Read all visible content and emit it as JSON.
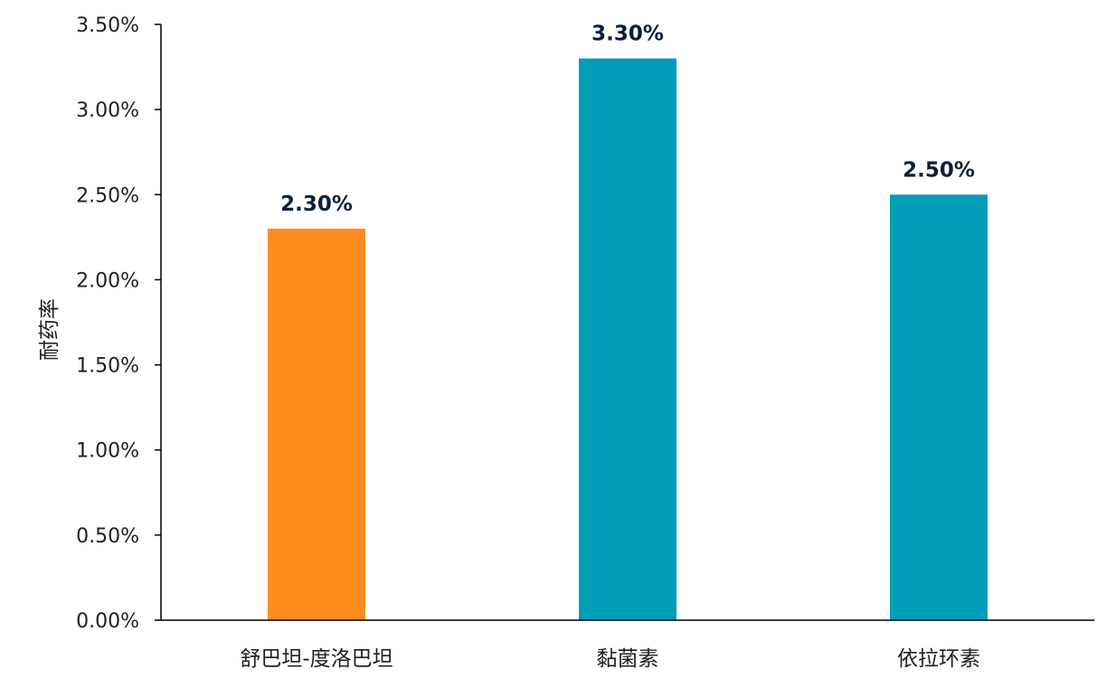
{
  "chart_data": {
    "type": "bar",
    "title": "",
    "xlabel": "",
    "ylabel": "耐药率",
    "categories": [
      "舒巴坦-度洛巴坦",
      "黏菌素",
      "依拉环素"
    ],
    "values": [
      0.023,
      0.033,
      0.025
    ],
    "data_labels": [
      "2.30%",
      "3.30%",
      "2.50%"
    ],
    "bar_colors": [
      "#FF8C1F",
      "#009DB8",
      "#009DB8"
    ],
    "ylim": [
      0,
      0.035
    ],
    "yticks": [
      0,
      0.005,
      0.01,
      0.015,
      0.02,
      0.025,
      0.03,
      0.035
    ],
    "ytick_labels": [
      "0.00%",
      "0.50%",
      "1.00%",
      "1.50%",
      "2.00%",
      "2.50%",
      "3.00%",
      "3.50%"
    ],
    "grid": false,
    "legend": "none"
  }
}
